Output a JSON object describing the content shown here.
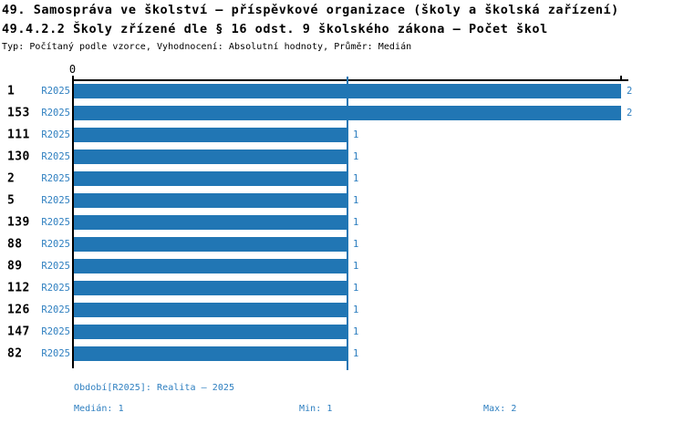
{
  "header": {
    "title_line1": "49. Samospráva ve školství – příspěvkové organizace (školy a školská zařízení)",
    "title_line2": "49.4.2.2 Školy zřízené dle § 16 odst. 9 školského zákona – Počet škol",
    "meta": "Typ: Počítaný podle vzorce, Vyhodnocení: Absolutní hodnoty, Průměr: Medián"
  },
  "chart_data": {
    "type": "bar",
    "orientation": "horizontal",
    "title": "49.4.2.2 Školy zřízené dle § 16 odst. 9 školského zákona – Počet škol",
    "series_label": "R2025",
    "categories": [
      "1",
      "153",
      "111",
      "130",
      "2",
      "5",
      "139",
      "88",
      "89",
      "112",
      "126",
      "147",
      "82"
    ],
    "values": [
      2,
      2,
      1,
      1,
      1,
      1,
      1,
      1,
      1,
      1,
      1,
      1,
      1
    ],
    "xlim": [
      0,
      2
    ],
    "x_tick_label": "0",
    "grid": "vertical gridline at x=1",
    "legend_position": "none",
    "bar_color": "#2176b4"
  },
  "footer": {
    "period_line": "Období[R2025]: Realita – 2025",
    "median_label": "Medián: 1",
    "min_label": "Min: 1",
    "max_label": "Max: 2"
  },
  "colors": {
    "bar": "#2176b4",
    "blue_text": "#2e7fc0",
    "axis": "#000000"
  }
}
